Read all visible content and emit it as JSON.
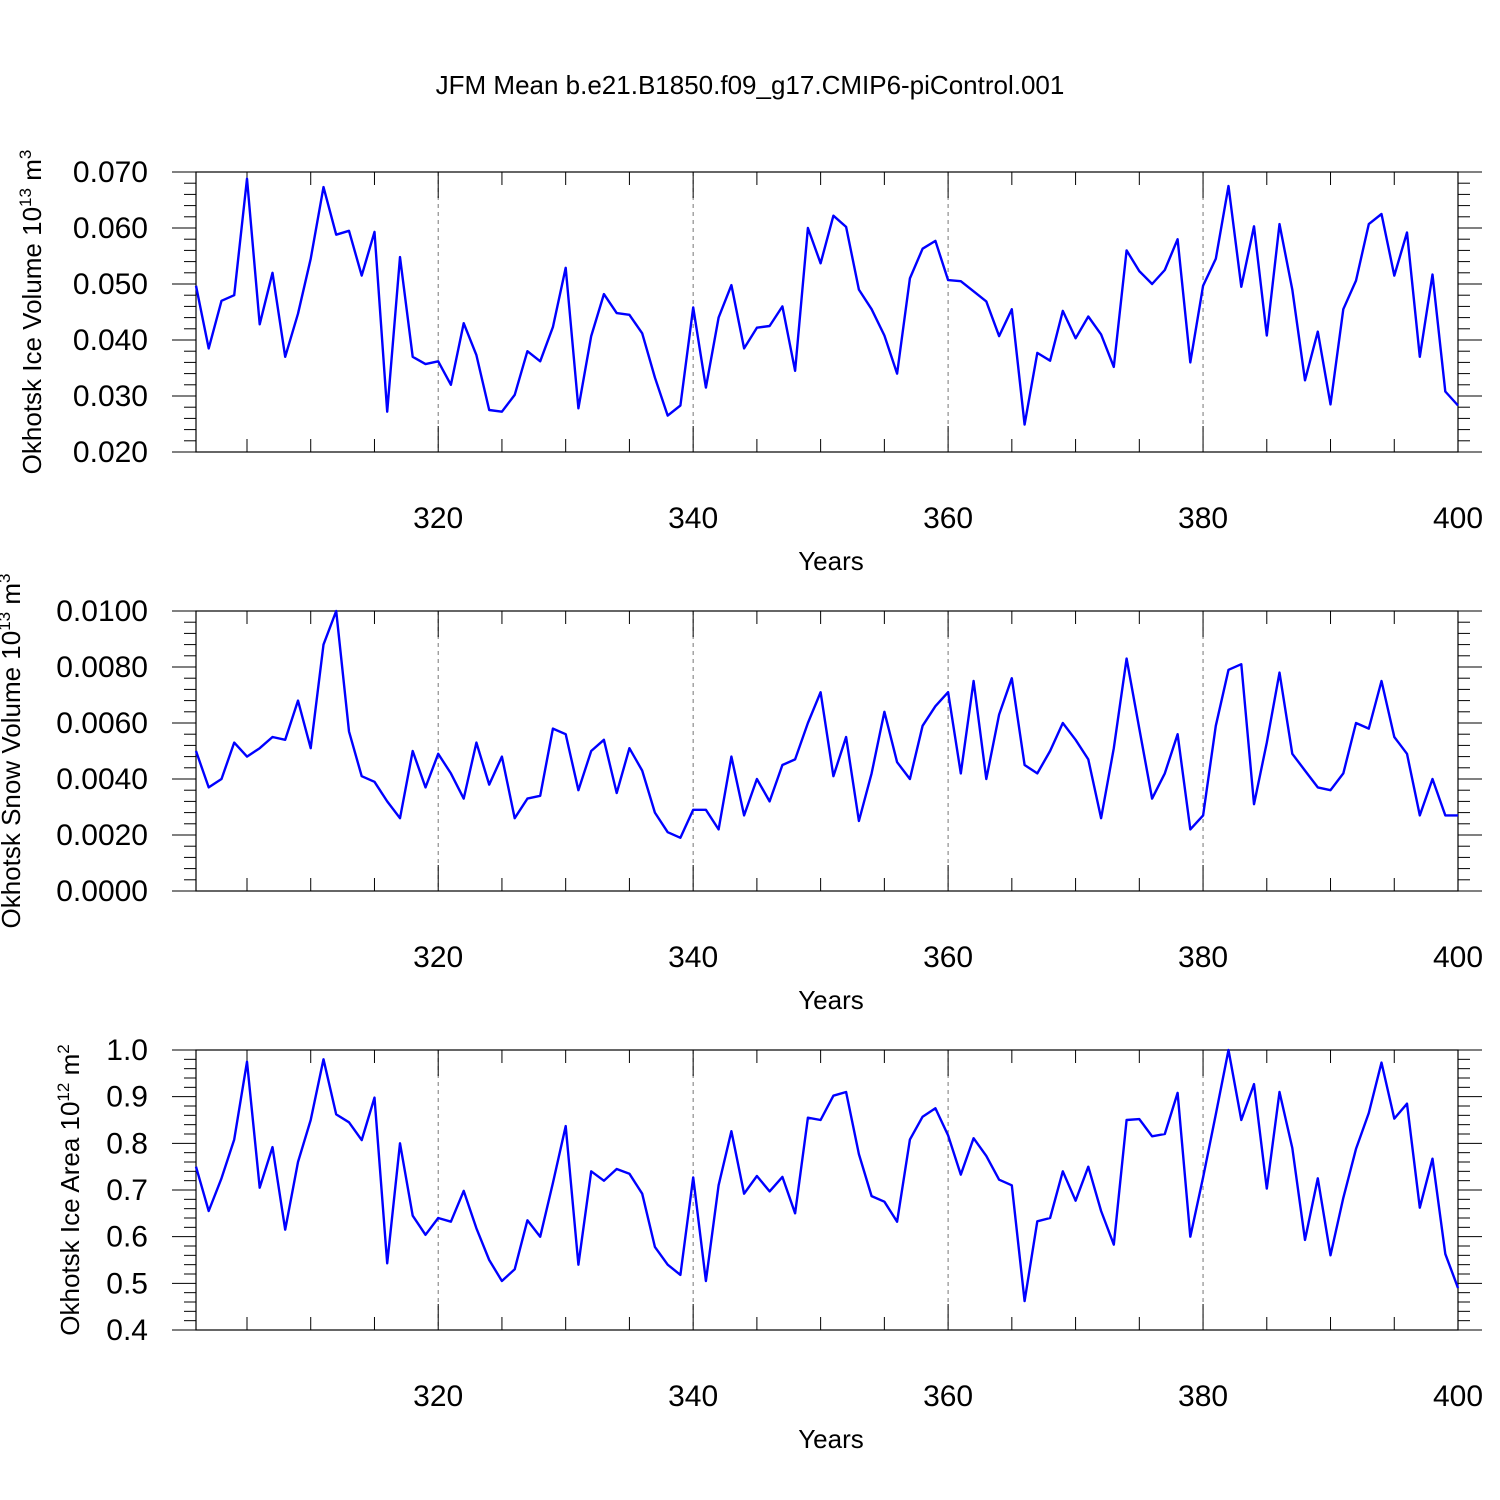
{
  "title": "JFM Mean b.e21.B1850.f09_g17.CMIP6-piControl.001",
  "chart_data": [
    {
      "type": "line",
      "name": "ice-volume",
      "ylabel_main": "Okhotsk Ice Volume 10",
      "ylabel_exp": "13",
      "ylabel_unit": " m",
      "ylabel_unit_exp": "3",
      "xlabel": "Years",
      "xlim": [
        301,
        400
      ],
      "ylim": [
        0.02,
        0.07
      ],
      "xticks": [
        320,
        340,
        360,
        380,
        400
      ],
      "xtick_labels": [
        "320",
        "340",
        "360",
        "380",
        "400"
      ],
      "yticks": [
        0.02,
        0.03,
        0.04,
        0.05,
        0.06,
        0.07
      ],
      "ytick_labels": [
        "0.020",
        "0.030",
        "0.040",
        "0.050",
        "0.060",
        "0.070"
      ],
      "grid": "vertical-dashed",
      "color": "#0000ff",
      "x_start": 301,
      "values": [
        0.0497,
        0.0385,
        0.047,
        0.048,
        0.0688,
        0.0428,
        0.052,
        0.037,
        0.0447,
        0.0545,
        0.0673,
        0.0588,
        0.0595,
        0.0515,
        0.0593,
        0.0272,
        0.0548,
        0.037,
        0.0357,
        0.0362,
        0.032,
        0.043,
        0.0373,
        0.0275,
        0.0272,
        0.0302,
        0.038,
        0.0362,
        0.0423,
        0.0529,
        0.0278,
        0.0407,
        0.0482,
        0.0448,
        0.0445,
        0.0412,
        0.0333,
        0.0265,
        0.0283,
        0.0458,
        0.0315,
        0.044,
        0.0498,
        0.0385,
        0.0422,
        0.0425,
        0.046,
        0.0345,
        0.06,
        0.0537,
        0.0622,
        0.0602,
        0.049,
        0.0455,
        0.0408,
        0.034,
        0.051,
        0.0563,
        0.0577,
        0.0507,
        0.0505,
        0.0487,
        0.0469,
        0.0407,
        0.0455,
        0.0249,
        0.0377,
        0.0363,
        0.0452,
        0.0403,
        0.0442,
        0.041,
        0.0352,
        0.056,
        0.0523,
        0.05,
        0.0525,
        0.058,
        0.036,
        0.0497,
        0.0545,
        0.0675,
        0.0495,
        0.0603,
        0.0408,
        0.0607,
        0.049,
        0.0328,
        0.0415,
        0.0285,
        0.0455,
        0.0506,
        0.0607,
        0.0625,
        0.0515,
        0.0592,
        0.037,
        0.0517,
        0.0308,
        0.0283
      ]
    },
    {
      "type": "line",
      "name": "snow-volume",
      "ylabel_main": "Okhotsk Snow Volume 10",
      "ylabel_exp": "13",
      "ylabel_unit": " m",
      "ylabel_unit_exp": "3",
      "xlabel": "Years",
      "xlim": [
        301,
        400
      ],
      "ylim": [
        0.0,
        0.01
      ],
      "xticks": [
        320,
        340,
        360,
        380,
        400
      ],
      "xtick_labels": [
        "320",
        "340",
        "360",
        "380",
        "400"
      ],
      "yticks": [
        0.0,
        0.002,
        0.004,
        0.006,
        0.008,
        0.01
      ],
      "ytick_labels": [
        "0.0000",
        "0.0020",
        "0.0040",
        "0.0060",
        "0.0080",
        "0.0100"
      ],
      "grid": "vertical-dashed",
      "color": "#0000ff",
      "x_start": 301,
      "values": [
        0.005,
        0.0037,
        0.004,
        0.0053,
        0.0048,
        0.0051,
        0.0055,
        0.0054,
        0.0068,
        0.0051,
        0.0088,
        0.01,
        0.0057,
        0.0041,
        0.0039,
        0.0032,
        0.0026,
        0.005,
        0.0037,
        0.0049,
        0.0042,
        0.0033,
        0.0053,
        0.0038,
        0.0048,
        0.0026,
        0.0033,
        0.0034,
        0.0058,
        0.0056,
        0.0036,
        0.005,
        0.0054,
        0.0035,
        0.0051,
        0.0043,
        0.0028,
        0.0021,
        0.0019,
        0.0029,
        0.0029,
        0.0022,
        0.0048,
        0.0027,
        0.004,
        0.0032,
        0.0045,
        0.0047,
        0.006,
        0.0071,
        0.0041,
        0.0055,
        0.0025,
        0.0042,
        0.0064,
        0.0046,
        0.004,
        0.0059,
        0.0066,
        0.0071,
        0.0042,
        0.0075,
        0.004,
        0.0063,
        0.0076,
        0.0045,
        0.0042,
        0.005,
        0.006,
        0.0054,
        0.0047,
        0.0026,
        0.0051,
        0.0083,
        0.0058,
        0.0033,
        0.0042,
        0.0056,
        0.0022,
        0.0027,
        0.0059,
        0.0079,
        0.0081,
        0.0031,
        0.0053,
        0.0078,
        0.0049,
        0.0043,
        0.0037,
        0.0036,
        0.0042,
        0.006,
        0.0058,
        0.0075,
        0.0055,
        0.0049,
        0.0027,
        0.004,
        0.0027,
        0.0027
      ]
    },
    {
      "type": "line",
      "name": "ice-area",
      "ylabel_main": "Okhotsk Ice Area 10",
      "ylabel_exp": "12",
      "ylabel_unit": " m",
      "ylabel_unit_exp": "2",
      "xlabel": "Years",
      "xlim": [
        301,
        400
      ],
      "ylim": [
        0.4,
        1.0
      ],
      "xticks": [
        320,
        340,
        360,
        380,
        400
      ],
      "xtick_labels": [
        "320",
        "340",
        "360",
        "380",
        "400"
      ],
      "yticks": [
        0.4,
        0.5,
        0.6,
        0.7,
        0.8,
        0.9,
        1.0
      ],
      "ytick_labels": [
        "0.4",
        "0.5",
        "0.6",
        "0.7",
        "0.8",
        "0.9",
        "1.0"
      ],
      "grid": "vertical-dashed",
      "color": "#0000ff",
      "x_start": 301,
      "values": [
        0.75,
        0.655,
        0.725,
        0.808,
        0.975,
        0.705,
        0.792,
        0.615,
        0.76,
        0.85,
        0.98,
        0.862,
        0.845,
        0.807,
        0.898,
        0.543,
        0.8,
        0.645,
        0.604,
        0.64,
        0.632,
        0.698,
        0.618,
        0.55,
        0.505,
        0.53,
        0.635,
        0.6,
        0.715,
        0.837,
        0.54,
        0.74,
        0.72,
        0.745,
        0.735,
        0.692,
        0.578,
        0.54,
        0.518,
        0.727,
        0.505,
        0.71,
        0.826,
        0.692,
        0.73,
        0.697,
        0.728,
        0.65,
        0.855,
        0.85,
        0.902,
        0.91,
        0.777,
        0.687,
        0.675,
        0.632,
        0.808,
        0.857,
        0.875,
        0.817,
        0.733,
        0.811,
        0.773,
        0.722,
        0.71,
        0.462,
        0.633,
        0.64,
        0.74,
        0.677,
        0.75,
        0.655,
        0.583,
        0.85,
        0.852,
        0.815,
        0.82,
        0.908,
        0.6,
        0.727,
        0.862,
        1.0,
        0.85,
        0.927,
        0.703,
        0.91,
        0.79,
        0.593,
        0.725,
        0.56,
        0.683,
        0.788,
        0.865,
        0.973,
        0.853,
        0.885,
        0.662,
        0.767,
        0.563,
        0.49
      ]
    }
  ]
}
